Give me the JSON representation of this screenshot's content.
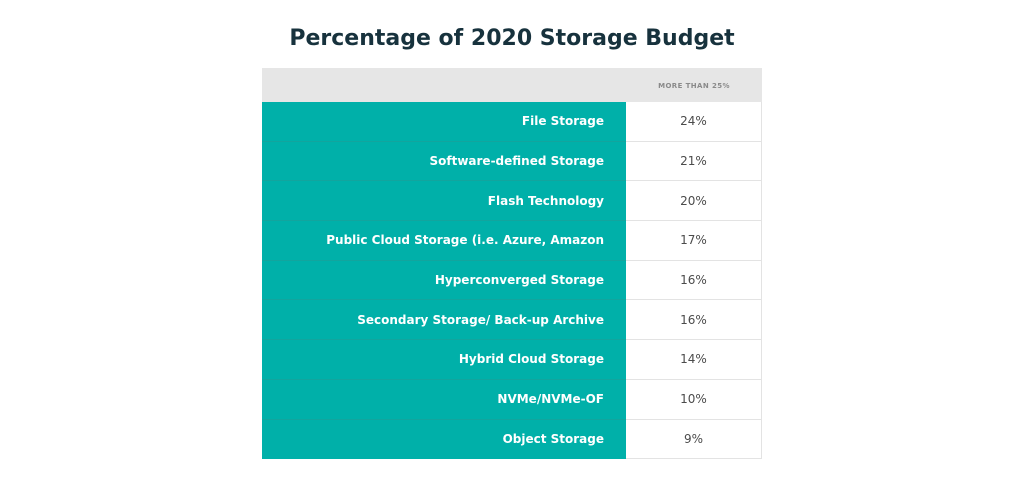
{
  "chart_data": {
    "type": "table",
    "title": "Percentage of 2020 Storage Budget",
    "column_header": "MORE THAN 25%",
    "rows": [
      {
        "label": "File Storage",
        "value": "24%"
      },
      {
        "label": "Software-defined Storage",
        "value": "21%"
      },
      {
        "label": "Flash Technology",
        "value": "20%"
      },
      {
        "label": "Public Cloud Storage (i.e. Azure, Amazon",
        "value": "17%"
      },
      {
        "label": "Hyperconverged Storage",
        "value": "16%"
      },
      {
        "label": "Secondary Storage/ Back-up Archive",
        "value": "16%"
      },
      {
        "label": "Hybrid Cloud Storage",
        "value": "14%"
      },
      {
        "label": "NVMe/NVMe-OF",
        "value": "10%"
      },
      {
        "label": "Object Storage",
        "value": "9%"
      }
    ],
    "colors": {
      "label_background": "#00b0a9",
      "header_background": "#e6e6e6",
      "title": "#17323d"
    }
  }
}
